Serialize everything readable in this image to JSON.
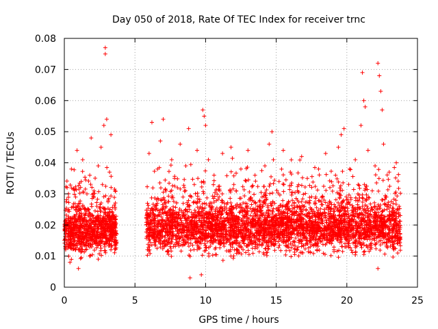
{
  "chart_data": {
    "type": "scatter",
    "title": "Day 050 of 2018, Rate Of TEC Index for receiver trnc",
    "xlabel": "GPS time / hours",
    "ylabel": "ROTI / TECUs",
    "xlim": [
      0,
      25
    ],
    "ylim": [
      0,
      0.08
    ],
    "x_ticks": [
      0,
      5,
      10,
      15,
      20,
      25
    ],
    "x_tick_labels": [
      "0",
      "5",
      "10",
      "15",
      "20",
      "25"
    ],
    "y_ticks": [
      0,
      0.01,
      0.02,
      0.03,
      0.04,
      0.05,
      0.06,
      0.07,
      0.08
    ],
    "y_tick_labels": [
      "0",
      "0.01",
      "0.02",
      "0.03",
      "0.04",
      "0.05",
      "0.06",
      "0.07",
      "0.08"
    ],
    "grid": true,
    "marker": "+",
    "series": [
      {
        "name": "ROTI",
        "color": "#ff0000",
        "points": [
          [
            0.1,
            0.019
          ],
          [
            0.2,
            0.032
          ],
          [
            0.3,
            0.025
          ],
          [
            0.5,
            0.038
          ],
          [
            0.6,
            0.021
          ],
          [
            0.8,
            0.029
          ],
          [
            0.9,
            0.044
          ],
          [
            1.0,
            0.016
          ],
          [
            1.1,
            0.027
          ],
          [
            1.2,
            0.034
          ],
          [
            1.3,
            0.041
          ],
          [
            1.4,
            0.022
          ],
          [
            1.5,
            0.012
          ],
          [
            1.6,
            0.03
          ],
          [
            1.7,
            0.018
          ],
          [
            1.8,
            0.036
          ],
          [
            1.9,
            0.048
          ],
          [
            2.0,
            0.023
          ],
          [
            2.1,
            0.031
          ],
          [
            2.2,
            0.014
          ],
          [
            2.3,
            0.026
          ],
          [
            2.4,
            0.039
          ],
          [
            2.5,
            0.021
          ],
          [
            2.6,
            0.045
          ],
          [
            2.7,
            0.033
          ],
          [
            2.8,
            0.052
          ],
          [
            2.9,
            0.077
          ],
          [
            2.9,
            0.075
          ],
          [
            3.0,
            0.054
          ],
          [
            3.1,
            0.028
          ],
          [
            3.2,
            0.037
          ],
          [
            3.3,
            0.049
          ],
          [
            3.4,
            0.024
          ],
          [
            3.5,
            0.019
          ],
          [
            3.6,
            0.031
          ],
          [
            0.4,
            0.008
          ],
          [
            1.0,
            0.006
          ],
          [
            1.8,
            0.01
          ],
          [
            2.4,
            0.009
          ],
          [
            3.3,
            0.012
          ],
          [
            6.0,
            0.043
          ],
          [
            6.2,
            0.053
          ],
          [
            6.4,
            0.026
          ],
          [
            6.6,
            0.038
          ],
          [
            6.8,
            0.047
          ],
          [
            7.0,
            0.054
          ],
          [
            7.2,
            0.031
          ],
          [
            7.4,
            0.022
          ],
          [
            7.6,
            0.041
          ],
          [
            7.8,
            0.035
          ],
          [
            8.0,
            0.018
          ],
          [
            8.2,
            0.046
          ],
          [
            8.4,
            0.029
          ],
          [
            8.6,
            0.039
          ],
          [
            8.8,
            0.051
          ],
          [
            8.9,
            0.003
          ],
          [
            9.0,
            0.024
          ],
          [
            9.2,
            0.033
          ],
          [
            9.4,
            0.044
          ],
          [
            9.6,
            0.016
          ],
          [
            9.7,
            0.004
          ],
          [
            9.8,
            0.057
          ],
          [
            9.9,
            0.055
          ],
          [
            10.0,
            0.052
          ],
          [
            10.2,
            0.041
          ],
          [
            10.4,
            0.027
          ],
          [
            10.6,
            0.036
          ],
          [
            10.8,
            0.019
          ],
          [
            11.0,
            0.031
          ],
          [
            11.2,
            0.043
          ],
          [
            11.5,
            0.024
          ],
          [
            11.8,
            0.045
          ],
          [
            12.0,
            0.033
          ],
          [
            12.2,
            0.015
          ],
          [
            12.5,
            0.038
          ],
          [
            12.8,
            0.027
          ],
          [
            13.0,
            0.044
          ],
          [
            13.2,
            0.021
          ],
          [
            13.5,
            0.036
          ],
          [
            13.8,
            0.017
          ],
          [
            14.0,
            0.029
          ],
          [
            14.2,
            0.039
          ],
          [
            14.5,
            0.046
          ],
          [
            14.7,
            0.05
          ],
          [
            14.8,
            0.041
          ],
          [
            15.0,
            0.023
          ],
          [
            15.2,
            0.034
          ],
          [
            15.5,
            0.044
          ],
          [
            15.8,
            0.025
          ],
          [
            16.0,
            0.037
          ],
          [
            16.2,
            0.019
          ],
          [
            16.5,
            0.031
          ],
          [
            16.8,
            0.042
          ],
          [
            17.0,
            0.026
          ],
          [
            17.2,
            0.035
          ],
          [
            17.5,
            0.016
          ],
          [
            17.8,
            0.029
          ],
          [
            18.0,
            0.038
          ],
          [
            18.2,
            0.022
          ],
          [
            18.5,
            0.043
          ],
          [
            18.8,
            0.032
          ],
          [
            19.0,
            0.018
          ],
          [
            19.2,
            0.036
          ],
          [
            19.4,
            0.045
          ],
          [
            19.6,
            0.049
          ],
          [
            19.8,
            0.051
          ],
          [
            20.0,
            0.027
          ],
          [
            20.2,
            0.038
          ],
          [
            20.4,
            0.024
          ],
          [
            20.6,
            0.041
          ],
          [
            20.8,
            0.033
          ],
          [
            21.0,
            0.052
          ],
          [
            21.1,
            0.069
          ],
          [
            21.2,
            0.06
          ],
          [
            21.3,
            0.058
          ],
          [
            21.5,
            0.044
          ],
          [
            21.8,
            0.031
          ],
          [
            22.0,
            0.039
          ],
          [
            22.2,
            0.072
          ],
          [
            22.3,
            0.068
          ],
          [
            22.4,
            0.063
          ],
          [
            22.5,
            0.057
          ],
          [
            22.6,
            0.046
          ],
          [
            22.8,
            0.029
          ],
          [
            23.0,
            0.037
          ],
          [
            23.2,
            0.022
          ],
          [
            23.5,
            0.04
          ],
          [
            23.7,
            0.026
          ],
          [
            22.2,
            0.006
          ],
          [
            23.6,
            0.011
          ]
        ]
      }
    ],
    "dense_segments": [
      {
        "x_start": 0.0,
        "x_end": 3.7,
        "y_low": 0.008,
        "y_high": 0.028,
        "count": 900
      },
      {
        "x_start": 5.8,
        "x_end": 23.8,
        "y_low": 0.008,
        "y_high": 0.03,
        "count": 3600
      }
    ]
  }
}
